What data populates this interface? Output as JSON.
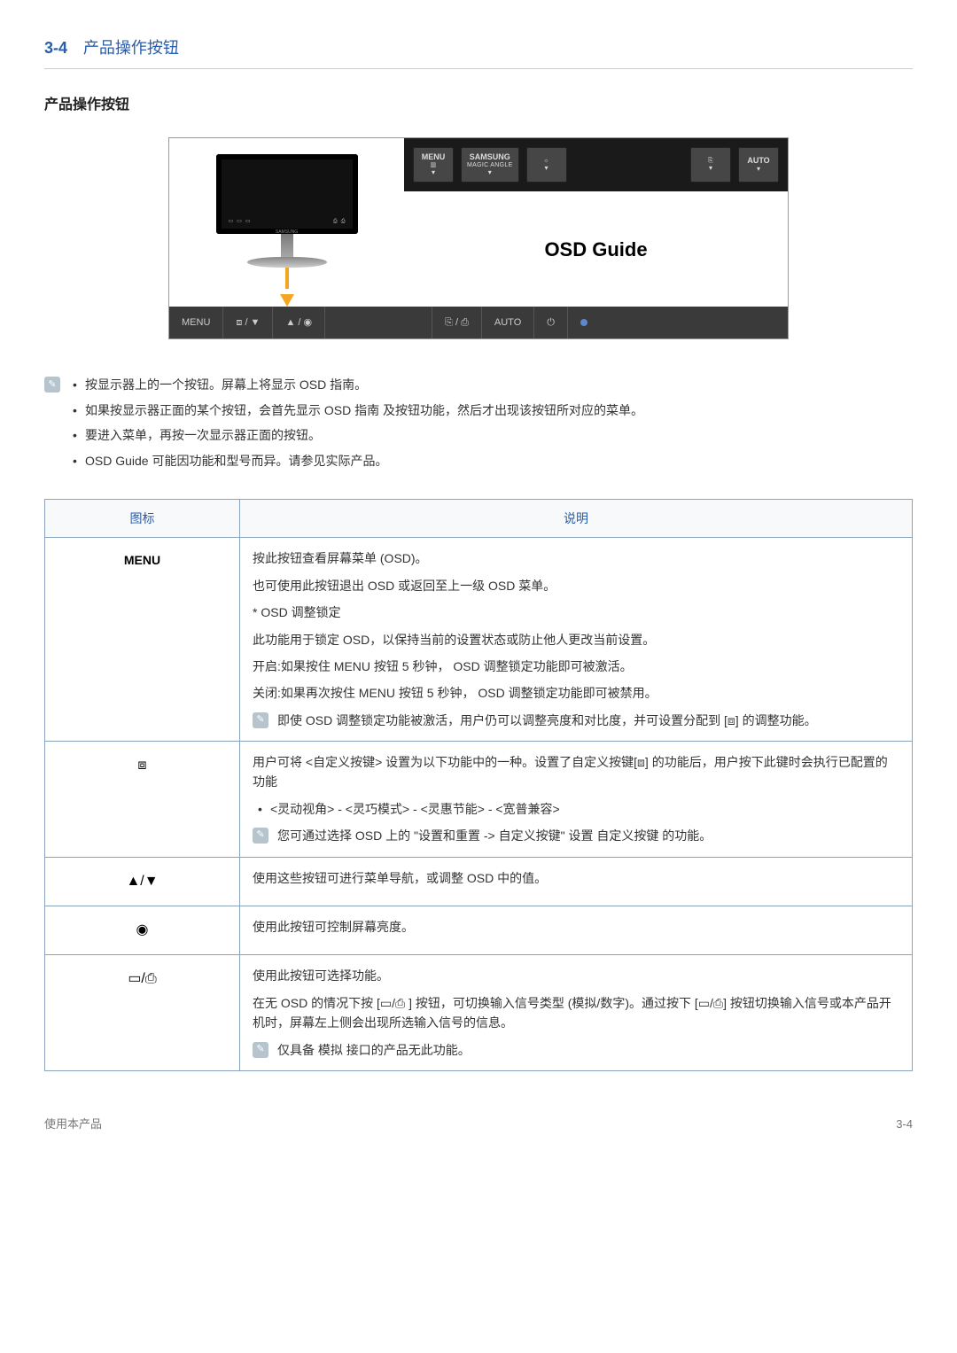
{
  "header": {
    "number": "3-4",
    "title": "产品操作按钮"
  },
  "subTitle": "产品操作按钮",
  "diagram": {
    "osdButtons": [
      {
        "top": "MENU",
        "mid": "▥",
        "tri": "▾"
      },
      {
        "top": "SAMSUNG",
        "mid": "MAGIC\nANGLE",
        "tri": "▾"
      },
      {
        "top": "",
        "mid": "☼",
        "tri": "▾"
      },
      {
        "top": "",
        "mid": "⎘",
        "tri": "▾"
      },
      {
        "top": "AUTO",
        "mid": "",
        "tri": "▾"
      }
    ],
    "osdGuide": "OSD Guide",
    "strip": [
      {
        "label": "MENU"
      },
      {
        "label": "⧈ / ▼"
      },
      {
        "label": "▲ / ◉"
      },
      {
        "label": "⎘ / ⎙"
      },
      {
        "label": "AUTO"
      },
      {
        "label": "⏻"
      },
      {
        "label": "•"
      }
    ],
    "monitorBrand": "SAMSUNG"
  },
  "notes": [
    "按显示器上的一个按钮。屏幕上将显示 OSD 指南。",
    "如果按显示器正面的某个按钮，会首先显示 OSD 指南 及按钮功能，然后才出现该按钮所对应的菜单。",
    "要进入菜单，再按一次显示器正面的按钮。",
    "OSD Guide 可能因功能和型号而异。请参见实际产品。"
  ],
  "table": {
    "headers": {
      "icon": "图标",
      "desc": "说明"
    },
    "rows": [
      {
        "icon": "MENU",
        "iconType": "text",
        "lines": [
          "按此按钮查看屏幕菜单 (OSD)。",
          "也可使用此按钮退出 OSD 或返回至上一级 OSD 菜单。",
          "* OSD 调整锁定",
          "此功能用于锁定 OSD，以保持当前的设置状态或防止他人更改当前设置。",
          "开启:如果按住 MENU 按钮 5 秒钟， OSD 调整锁定功能即可被激活。",
          "关闭:如果再次按住 MENU 按钮 5 秒钟， OSD 调整锁定功能即可被禁用。"
        ],
        "note": "即使 OSD 调整锁定功能被激活，用户仍可以调整亮度和对比度，并可设置分配到 [⧈] 的调整功能。"
      },
      {
        "icon": "⧈",
        "iconType": "symbol",
        "lines": [
          "用户可将 <自定义按键> 设置为以下功能中的一种。设置了自定义按键[⧈] 的功能后，用户按下此键时会执行已配置的功能"
        ],
        "bullets": [
          "<灵动视角> - <灵巧模式> - <灵惠节能> - <宽普兼容>"
        ],
        "note": "您可通过选择 OSD 上的 \"设置和重置 -> 自定义按键\" 设置 自定义按键 的功能。"
      },
      {
        "icon": "▲/▼",
        "iconType": "symbol",
        "lines": [
          "使用这些按钮可进行菜单导航，或调整 OSD 中的值。"
        ]
      },
      {
        "icon": "◉",
        "iconType": "symbol",
        "lines": [
          "使用此按钮可控制屏幕亮度。"
        ]
      },
      {
        "icon": "▭/⎙",
        "iconType": "symbol",
        "lines": [
          "使用此按钮可选择功能。",
          "在无 OSD 的情况下按 [▭/⎙ ] 按钮，可切换输入信号类型 (模拟/数字)。通过按下 [▭/⎙] 按钮切换输入信号或本产品开机时，屏幕左上侧会出现所选输入信号的信息。"
        ],
        "note": "仅具备 模拟 接口的产品无此功能。"
      }
    ]
  },
  "footer": {
    "left": "使用本产品",
    "right": "3-4"
  }
}
